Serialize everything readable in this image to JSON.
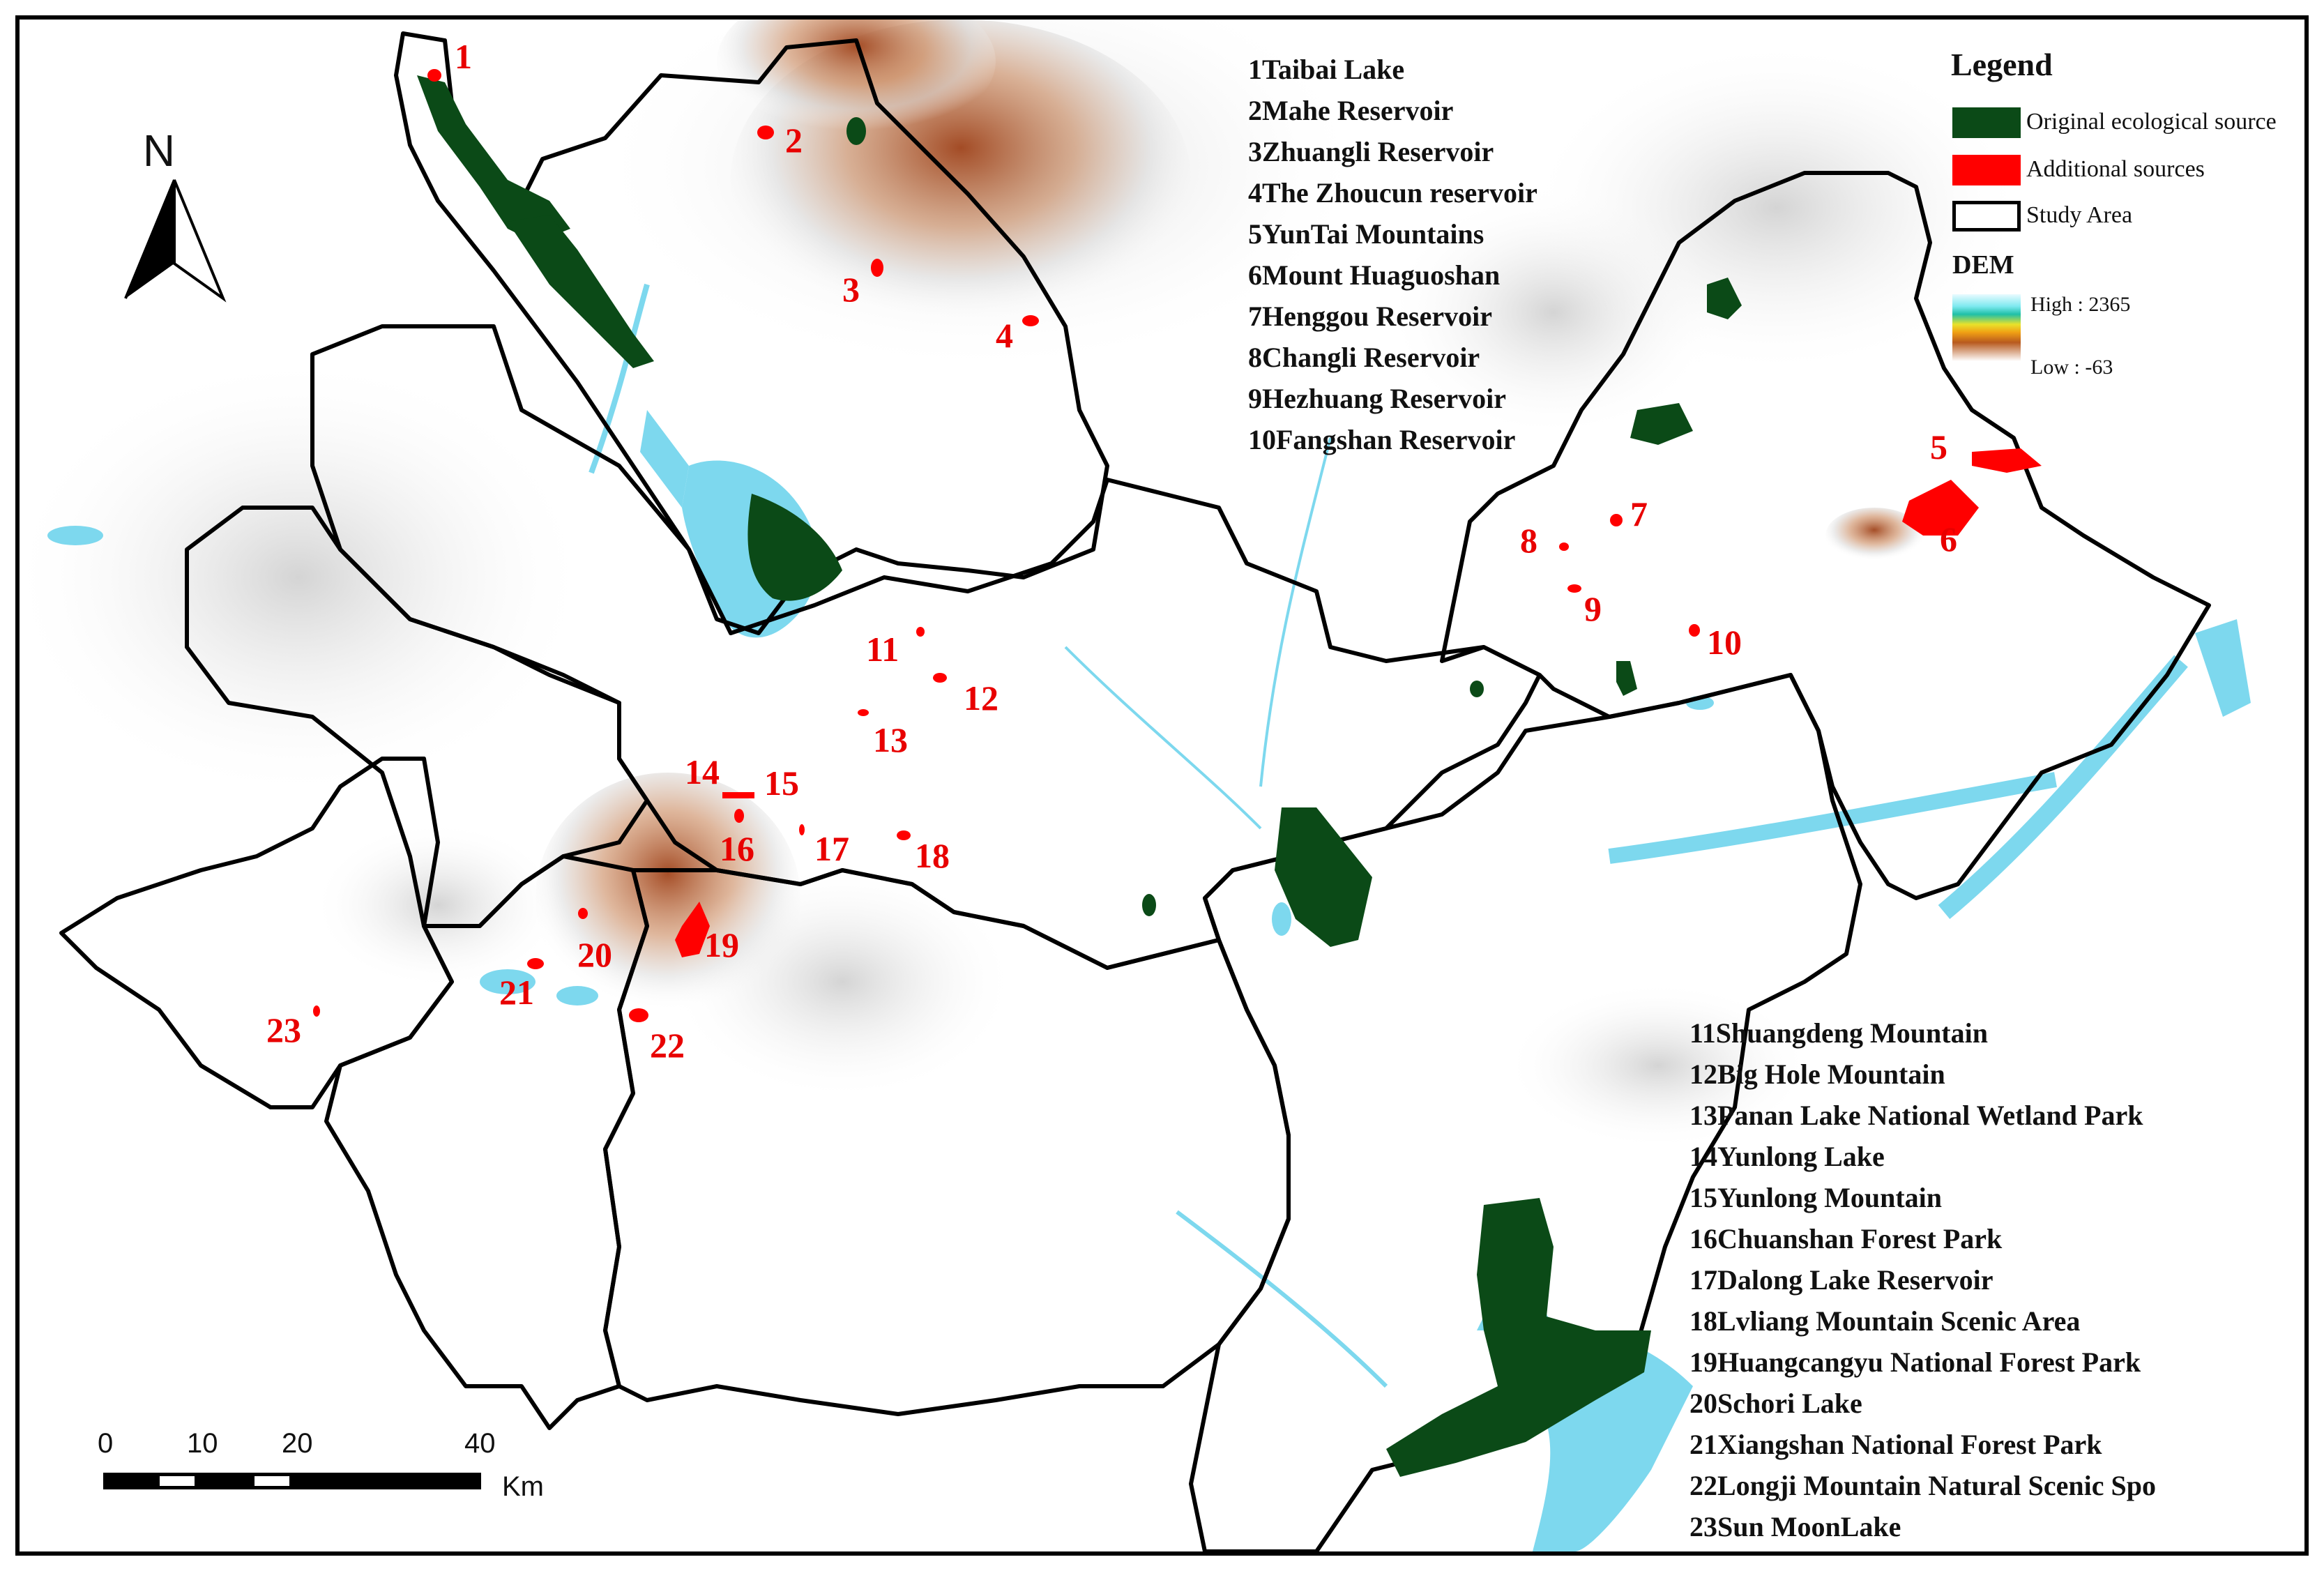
{
  "north_arrow": {
    "label": "N"
  },
  "legend": {
    "title": "Legend",
    "items": [
      {
        "label": "Original ecological source",
        "color": "#0b4a17"
      },
      {
        "label": "Additional sources",
        "color": "#ff0000"
      },
      {
        "label": "Study Area",
        "color": "#ffffff",
        "border": "#000000"
      }
    ],
    "dem": {
      "title": "DEM",
      "high": "High : 2365",
      "low": "Low : -63"
    }
  },
  "sites": [
    "1Taibai Lake",
    "2Mahe Reservoir",
    "3Zhuangli Reservoir",
    "4The Zhoucun reservoir",
    "5YunTai Mountains",
    "6Mount Huaguoshan",
    "7Henggou Reservoir",
    "8Changli Reservoir",
    "9Hezhuang Reservoir",
    "10Fangshan Reservoir",
    "11Shuangdeng Mountain",
    "12Big Hole Mountain",
    "13Panan Lake National Wetland Park",
    "14Yunlong Lake",
    "15Yunlong Mountain",
    "16Chuanshan Forest Park",
    "17Dalong Lake Reservoir",
    "18Lvliang Mountain Scenic Area",
    "19Huangcangyu National Forest Park",
    "20Schori Lake",
    "21Xiangshan National Forest Park",
    "22Longji Mountain Natural Scenic Spo",
    "23Sun MoonLake"
  ],
  "site_markers": [
    "1",
    "2",
    "3",
    "4",
    "5",
    "6",
    "7",
    "8",
    "9",
    "10",
    "11",
    "12",
    "13",
    "14",
    "15",
    "16",
    "17",
    "18",
    "19",
    "20",
    "21",
    "22",
    "23"
  ],
  "scale_bar": {
    "ticks": [
      "0",
      "10",
      "20",
      "40"
    ],
    "unit": "Km"
  },
  "colors": {
    "water": "#7dd8ee",
    "original_source": "#0b4a17",
    "additional_source": "#ff0000",
    "boundary": "#000000",
    "terrain_high": "#a0441c"
  }
}
